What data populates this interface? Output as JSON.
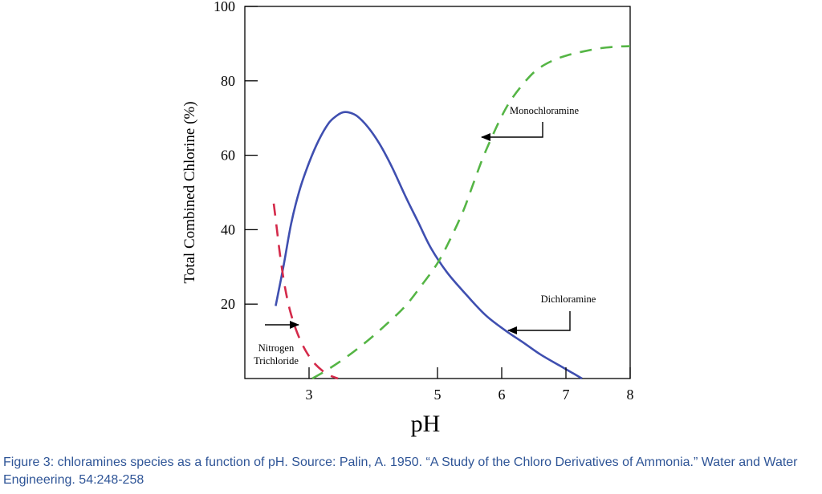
{
  "chart_data": {
    "type": "line",
    "xlabel": "pH",
    "ylabel": "Total Combined Chlorine (%)",
    "xlim": [
      2,
      8
    ],
    "ylim": [
      0,
      100
    ],
    "x_ticks": [
      3,
      5,
      6,
      7,
      8
    ],
    "y_ticks": [
      20,
      40,
      60,
      80,
      100
    ],
    "grid": false,
    "series": [
      {
        "name": "Dichloramine",
        "color": "#3f4fb0",
        "style": "solid",
        "x": [
          2.48,
          2.6,
          2.72,
          2.85,
          3.0,
          3.15,
          3.3,
          3.42,
          3.52,
          3.62,
          3.75,
          3.92,
          4.1,
          4.3,
          4.5,
          4.7,
          4.9,
          5.15,
          5.45,
          5.75,
          6.05,
          6.35,
          6.6,
          6.9,
          7.1,
          7.25
        ],
        "y": [
          19.5,
          30,
          41.5,
          50.5,
          58,
          64,
          68.5,
          70.5,
          71.5,
          71.5,
          70.5,
          67.5,
          63,
          56.5,
          49,
          42,
          35,
          28.5,
          22.5,
          17,
          13,
          9.5,
          6.5,
          3.5,
          1.5,
          0
        ]
      },
      {
        "name": "Monochloramine",
        "color": "#55b545",
        "style": "dashed",
        "x": [
          3.05,
          3.3,
          3.6,
          3.9,
          4.2,
          4.5,
          4.75,
          5.0,
          5.2,
          5.4,
          5.55,
          5.7,
          5.85,
          6.0,
          6.15,
          6.35,
          6.55,
          6.8,
          7.05,
          7.3,
          7.55,
          7.8,
          8.0
        ],
        "y": [
          0,
          2.5,
          6,
          10,
          14.5,
          19.5,
          25,
          31,
          37.5,
          45,
          52,
          59,
          65,
          70.5,
          75,
          79.5,
          83,
          85.5,
          87,
          88,
          88.8,
          89.2,
          89.3
        ]
      },
      {
        "name": "Nitrogen Trichloride",
        "color": "#d42a4a",
        "style": "dashed",
        "x": [
          2.45,
          2.5,
          2.55,
          2.62,
          2.7,
          2.8,
          2.9,
          3.0,
          3.1,
          3.2,
          3.3,
          3.45
        ],
        "y": [
          47,
          40,
          33,
          25,
          18.5,
          13,
          9,
          6,
          3.8,
          2.2,
          1,
          0
        ]
      }
    ],
    "annotations": [
      {
        "series": "Monochloramine",
        "text": [
          "Monochloramine"
        ]
      },
      {
        "series": "Dichloramine",
        "text": [
          "Dichloramine"
        ]
      },
      {
        "series": "Nitrogen Trichloride",
        "text": [
          "Nitrogen",
          "Trichloride"
        ]
      }
    ]
  },
  "caption": "Figure 3: chloramines species as a function of pH. Source: Palin, A. 1950. “A Study of the Chloro Derivatives of Ammonia.” Water and Water Engineering. 54:248-258"
}
